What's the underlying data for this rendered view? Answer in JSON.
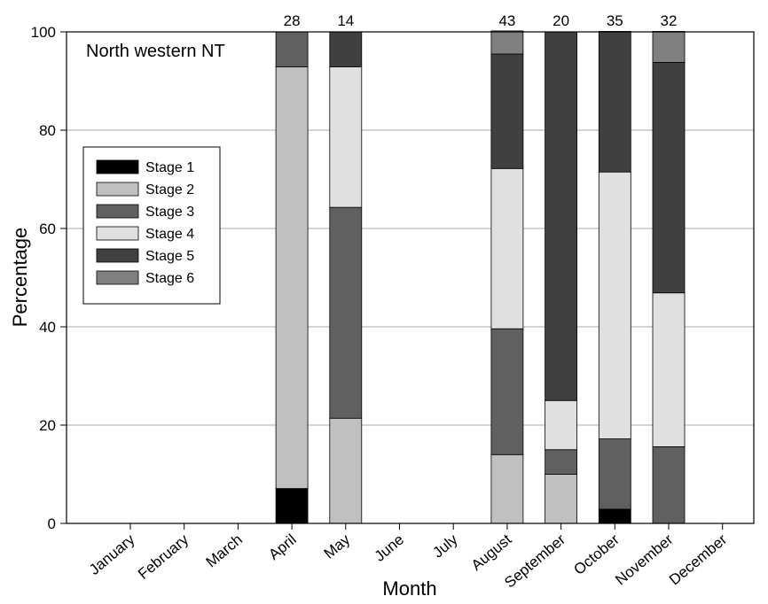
{
  "chart_data": {
    "type": "stacked_bar",
    "annotation": "North western NT",
    "x_label": "Month",
    "y_label": "Percentage",
    "categories": [
      "January",
      "February",
      "March",
      "April",
      "May",
      "June",
      "July",
      "August",
      "September",
      "October",
      "November",
      "December"
    ],
    "series": [
      {
        "name": "Stage 1",
        "color": "#000000",
        "values": [
          null,
          null,
          null,
          7.1,
          0,
          null,
          null,
          0,
          0,
          2.9,
          0,
          null
        ]
      },
      {
        "name": "Stage 2",
        "color": "#c0c0c0",
        "values": [
          null,
          null,
          null,
          85.8,
          21.4,
          null,
          null,
          14.0,
          10,
          0,
          0,
          null
        ]
      },
      {
        "name": "Stage 3",
        "color": "#606060",
        "values": [
          null,
          null,
          null,
          7.1,
          42.9,
          null,
          null,
          25.6,
          5,
          14.3,
          15.6,
          null
        ]
      },
      {
        "name": "Stage 4",
        "color": "#e0e0e0",
        "values": [
          null,
          null,
          null,
          0,
          28.6,
          null,
          null,
          32.6,
          10,
          54.3,
          31.3,
          null
        ]
      },
      {
        "name": "Stage 5",
        "color": "#404040",
        "values": [
          null,
          null,
          null,
          0,
          7.1,
          null,
          null,
          23.3,
          75,
          28.6,
          46.9,
          null
        ]
      },
      {
        "name": "Stage 6",
        "color": "#808080",
        "values": [
          null,
          null,
          null,
          0,
          0,
          null,
          null,
          4.7,
          0,
          0,
          6.3,
          null
        ]
      }
    ],
    "bar_labels": [
      null,
      null,
      null,
      28,
      14,
      null,
      null,
      43,
      20,
      35,
      32,
      null
    ],
    "ylim": [
      0,
      100
    ],
    "yticks": [
      0,
      20,
      40,
      60,
      80,
      100
    ],
    "grid": true,
    "legend": "left"
  }
}
